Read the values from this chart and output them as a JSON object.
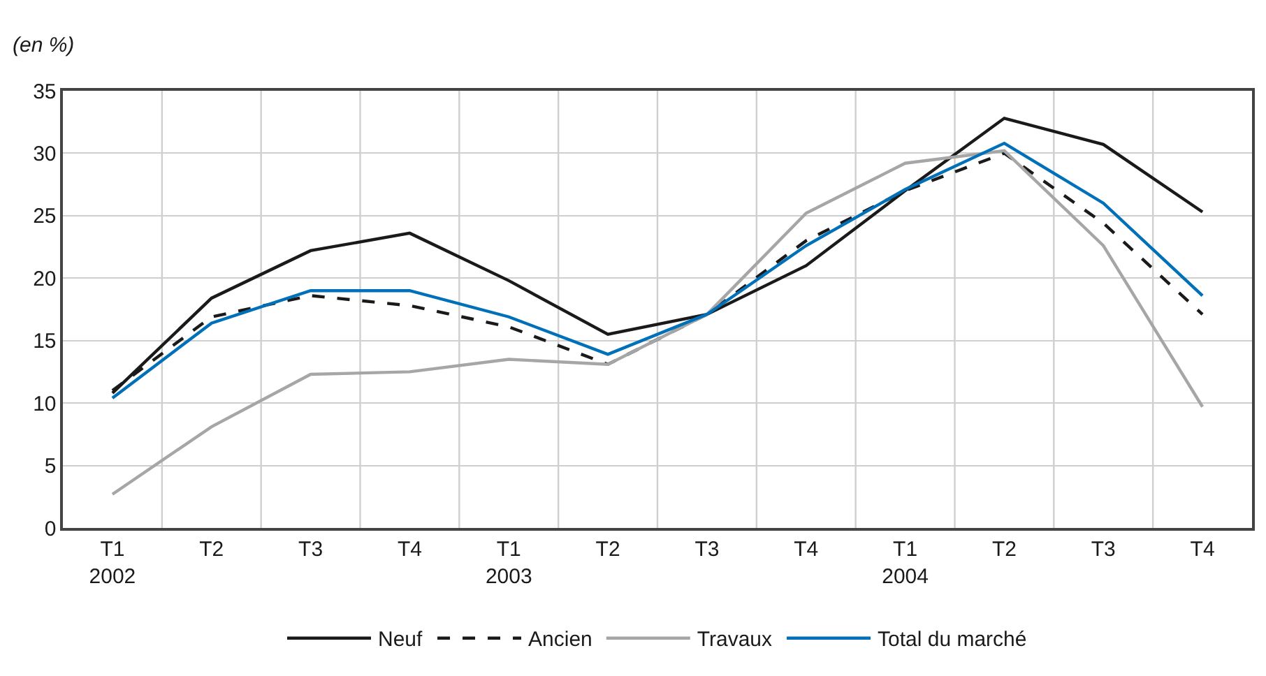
{
  "chart_data": {
    "type": "line",
    "ylabel": "(en %)",
    "categories": [
      "T1\n2002",
      "T2",
      "T3",
      "T4",
      "T1\n2003",
      "T2",
      "T3",
      "T4",
      "T1\n2004",
      "T2",
      "T3",
      "T4"
    ],
    "series": [
      {
        "name": "Neuf",
        "color": "#1a1a1a",
        "line_style": "solid",
        "values": [
          10.8,
          18.4,
          22.2,
          23.6,
          19.8,
          15.5,
          17.1,
          21.0,
          27.0,
          32.8,
          30.7,
          25.3
        ]
      },
      {
        "name": "Ancien",
        "color": "#1a1a1a",
        "line_style": "dashed",
        "values": [
          11.0,
          16.9,
          18.6,
          17.8,
          16.1,
          13.1,
          17.1,
          23.0,
          27.0,
          30.0,
          24.4,
          17.1
        ]
      },
      {
        "name": "Travaux",
        "color": "#a6a6a6",
        "line_style": "solid",
        "values": [
          2.7,
          8.1,
          12.3,
          12.5,
          13.5,
          13.1,
          17.1,
          25.2,
          29.2,
          30.2,
          22.6,
          9.7
        ]
      },
      {
        "name": "Total du marché",
        "color": "#0070b8",
        "line_style": "solid",
        "values": [
          10.4,
          16.4,
          19.0,
          19.0,
          16.9,
          13.9,
          17.1,
          22.6,
          27.1,
          30.8,
          26.0,
          18.6
        ]
      }
    ],
    "ylim": [
      0,
      35
    ],
    "yticks": [
      0,
      5,
      10,
      15,
      20,
      25,
      30,
      35
    ],
    "grid": true,
    "legend": "bottom",
    "marker": "none"
  }
}
